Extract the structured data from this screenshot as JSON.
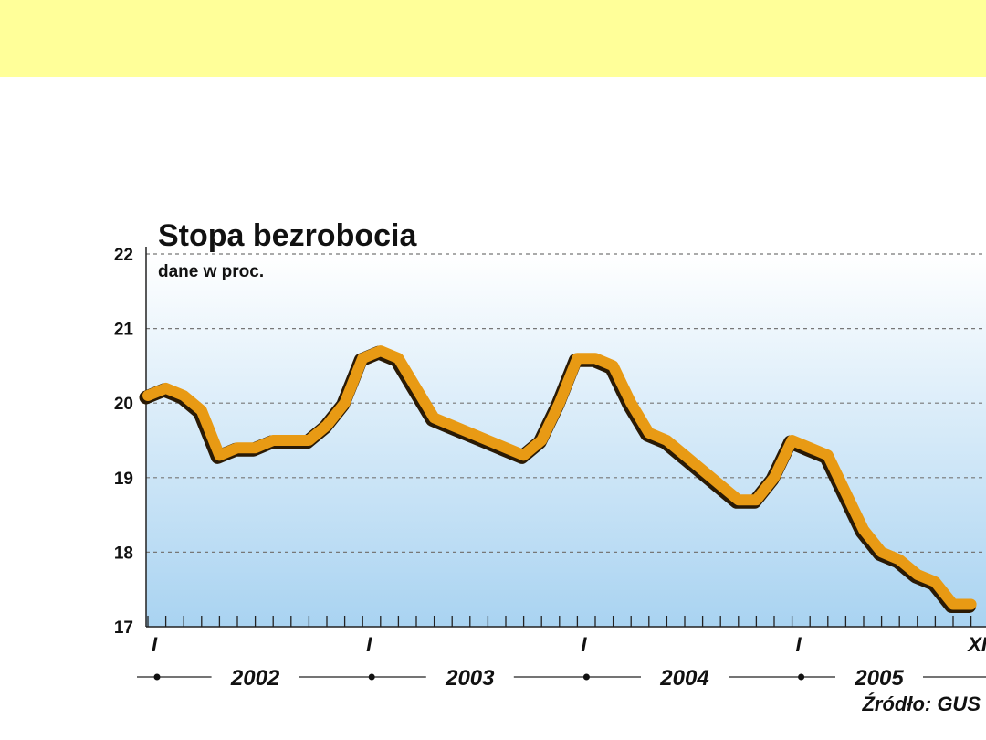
{
  "colors": {
    "banner": "#ffff99",
    "line": "#e89a14",
    "line_shadow": "#2a1a05",
    "plot_top": "#ffffff",
    "plot_bottom": "#a9d3f1",
    "grid": "#777777"
  },
  "chart_data": {
    "type": "line",
    "title": "Stopa bezrobocia",
    "subtitle": "dane w proc.",
    "source": "Źródło: GUS",
    "ylim": [
      17,
      22
    ],
    "yticks": [
      "17",
      "18",
      "19",
      "20",
      "21",
      "22"
    ],
    "grid": "horizontal dashed",
    "x_tick_labels": [
      {
        "label": "I",
        "month_index": 0
      },
      {
        "label": "I",
        "month_index": 12
      },
      {
        "label": "I",
        "month_index": 24
      },
      {
        "label": "I",
        "month_index": 36
      },
      {
        "label": "XI",
        "month_index": 46
      }
    ],
    "years": [
      "2002",
      "2003",
      "2004",
      "2005"
    ],
    "x": [
      "2002-01",
      "2002-02",
      "2002-03",
      "2002-04",
      "2002-05",
      "2002-06",
      "2002-07",
      "2002-08",
      "2002-09",
      "2002-10",
      "2002-11",
      "2002-12",
      "2003-01",
      "2003-02",
      "2003-03",
      "2003-04",
      "2003-05",
      "2003-06",
      "2003-07",
      "2003-08",
      "2003-09",
      "2003-10",
      "2003-11",
      "2003-12",
      "2004-01",
      "2004-02",
      "2004-03",
      "2004-04",
      "2004-05",
      "2004-06",
      "2004-07",
      "2004-08",
      "2004-09",
      "2004-10",
      "2004-11",
      "2004-12",
      "2005-01",
      "2005-02",
      "2005-03",
      "2005-04",
      "2005-05",
      "2005-06",
      "2005-07",
      "2005-08",
      "2005-09",
      "2005-10",
      "2005-11"
    ],
    "values": [
      20.1,
      20.2,
      20.1,
      19.9,
      19.3,
      19.4,
      19.4,
      19.5,
      19.5,
      19.5,
      19.7,
      20.0,
      20.6,
      20.7,
      20.6,
      20.2,
      19.8,
      19.7,
      19.6,
      19.5,
      19.4,
      19.3,
      19.5,
      20.0,
      20.6,
      20.6,
      20.5,
      20.0,
      19.6,
      19.5,
      19.3,
      19.1,
      18.9,
      18.7,
      18.7,
      19.0,
      19.5,
      19.4,
      19.3,
      18.8,
      18.3,
      18.0,
      17.9,
      17.7,
      17.6,
      17.3,
      17.3
    ]
  }
}
